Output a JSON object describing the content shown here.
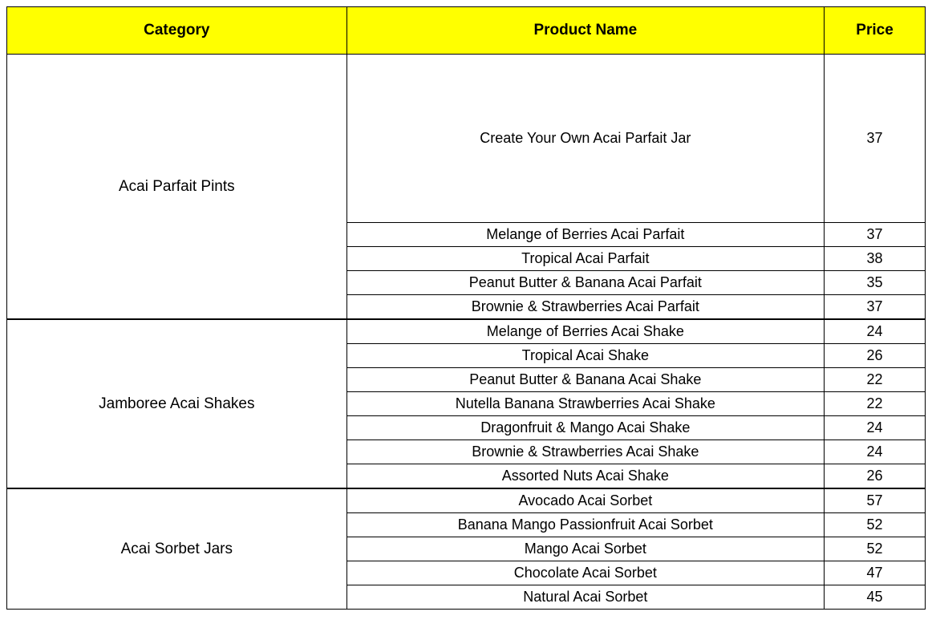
{
  "headers": {
    "category": "Category",
    "product": "Product Name",
    "price": "Price"
  },
  "colors": {
    "header_bg": "#ffff00",
    "border": "#000000",
    "text": "#000000",
    "background": "#ffffff"
  },
  "font": {
    "header_size_pt": 14,
    "cell_size_pt": 13,
    "header_weight": "bold"
  },
  "column_widths_pct": [
    37,
    52,
    11
  ],
  "categories": [
    {
      "name": "Acai Parfait Pints",
      "items": [
        {
          "product": "Create Your Own Acai Parfait Jar",
          "price": 37
        },
        {
          "product": "Melange of Berries Acai Parfait",
          "price": 37
        },
        {
          "product": "Tropical Acai Parfait",
          "price": 38
        },
        {
          "product": "Peanut Butter & Banana Acai Parfait",
          "price": 35
        },
        {
          "product": "Brownie & Strawberries  Acai Parfait",
          "price": 37
        }
      ]
    },
    {
      "name": "Jamboree Acai Shakes",
      "items": [
        {
          "product": "Melange of Berries Acai Shake",
          "price": 24
        },
        {
          "product": "Tropical Acai Shake",
          "price": 26
        },
        {
          "product": "Peanut Butter & Banana Acai Shake",
          "price": 22
        },
        {
          "product": "Nutella Banana Strawberries Acai Shake",
          "price": 22
        },
        {
          "product": "Dragonfruit & Mango Acai Shake",
          "price": 24
        },
        {
          "product": "Brownie & Strawberries Acai Shake",
          "price": 24
        },
        {
          "product": "Assorted Nuts Acai Shake",
          "price": 26
        }
      ]
    },
    {
      "name": "Acai Sorbet Jars",
      "items": [
        {
          "product": "Avocado Acai Sorbet",
          "price": 57
        },
        {
          "product": "Banana Mango Passionfruit Acai Sorbet",
          "price": 52
        },
        {
          "product": "Mango Acai Sorbet",
          "price": 52
        },
        {
          "product": "Chocolate Acai Sorbet",
          "price": 47
        },
        {
          "product": "Natural Acai Sorbet",
          "price": 45
        }
      ]
    }
  ]
}
